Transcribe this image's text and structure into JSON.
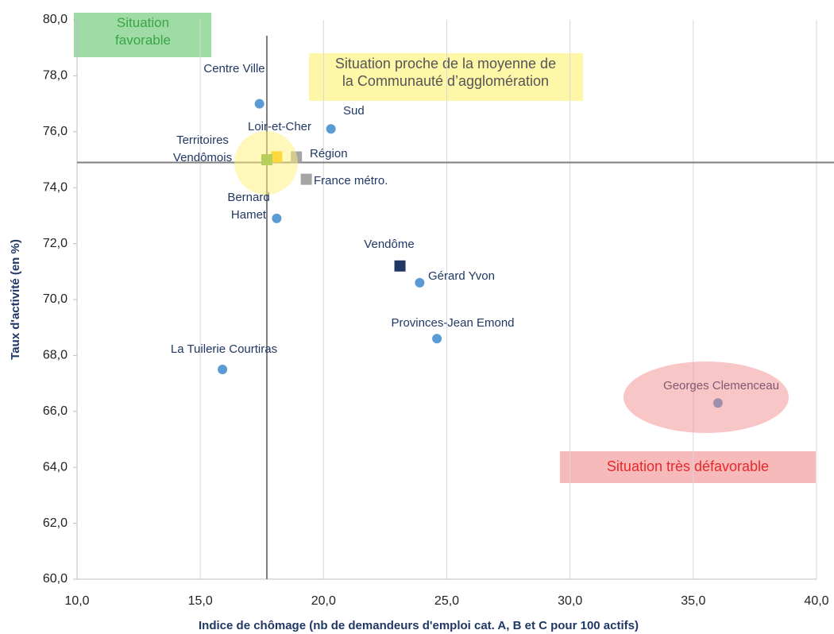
{
  "chart_data": {
    "type": "scatter",
    "x_label": "Indice de chômage (nb de demandeurs d'emploi cat. A, B et C pour 100 actifs)",
    "y_label": "Taux d'activité (en %)",
    "xlim": [
      10,
      40
    ],
    "ylim": [
      60,
      80
    ],
    "xticks": [
      {
        "value": 10,
        "label": "10,0"
      },
      {
        "value": 15,
        "label": "15,0"
      },
      {
        "value": 20,
        "label": "20,0"
      },
      {
        "value": 25,
        "label": "25,0"
      },
      {
        "value": 30,
        "label": "30,0"
      },
      {
        "value": 35,
        "label": "35,0"
      },
      {
        "value": 40,
        "label": "40,0"
      }
    ],
    "yticks": [
      {
        "value": 60,
        "label": "60,0"
      },
      {
        "value": 62,
        "label": "62,0"
      },
      {
        "value": 64,
        "label": "64,0"
      },
      {
        "value": 66,
        "label": "66,0"
      },
      {
        "value": 68,
        "label": "68,0"
      },
      {
        "value": 70,
        "label": "70,0"
      },
      {
        "value": 72,
        "label": "72,0"
      },
      {
        "value": 74,
        "label": "74,0"
      },
      {
        "value": 76,
        "label": "76,0"
      },
      {
        "value": 78,
        "label": "78,0"
      },
      {
        "value": 80,
        "label": "80,0"
      }
    ],
    "grid": "x",
    "reference_lines": {
      "x": 17.7,
      "y": 74.9
    },
    "annotations": [
      "Situation favorable",
      "Situation proche de la moyenne de la Communauté d’agglomération",
      "Situation très défavorable"
    ],
    "series": [
      {
        "name": "Centre Ville",
        "color": "#5b9bd5",
        "marker": "circle",
        "x": [
          17.4
        ],
        "values": [
          77.0
        ]
      },
      {
        "name": "Sud",
        "color": "#5b9bd5",
        "marker": "circle",
        "x": [
          20.3
        ],
        "values": [
          76.1
        ]
      },
      {
        "name": "Loir-et-Cher",
        "color": "#ffc000",
        "marker": "square",
        "x": [
          18.1
        ],
        "values": [
          75.1
        ]
      },
      {
        "name": "Région",
        "color": "#a5a5a5",
        "marker": "square",
        "x": [
          18.9
        ],
        "values": [
          75.1
        ]
      },
      {
        "name": "Territoires Vendômois",
        "color": "#70ad47",
        "marker": "square",
        "x": [
          17.7
        ],
        "values": [
          75.0
        ]
      },
      {
        "name": "France métro.",
        "color": "#a5a5a5",
        "marker": "square",
        "x": [
          19.3
        ],
        "values": [
          74.3
        ]
      },
      {
        "name": "Bernard Hamet",
        "color": "#5b9bd5",
        "marker": "circle",
        "x": [
          18.1
        ],
        "values": [
          72.9
        ]
      },
      {
        "name": "Vendôme",
        "color": "#203864",
        "marker": "square",
        "x": [
          23.1
        ],
        "values": [
          71.2
        ]
      },
      {
        "name": "Gérard Yvon",
        "color": "#5b9bd5",
        "marker": "circle",
        "x": [
          23.9
        ],
        "values": [
          70.6
        ]
      },
      {
        "name": "Provinces-Jean Emond",
        "color": "#5b9bd5",
        "marker": "circle",
        "x": [
          24.6
        ],
        "values": [
          68.6
        ]
      },
      {
        "name": "La Tuilerie Courtiras",
        "color": "#5b9bd5",
        "marker": "circle",
        "x": [
          15.9
        ],
        "values": [
          67.5
        ]
      },
      {
        "name": "Georges Clemenceau",
        "color": "#5b9bd5",
        "marker": "circle",
        "x": [
          36.0
        ],
        "values": [
          66.3
        ]
      }
    ]
  }
}
